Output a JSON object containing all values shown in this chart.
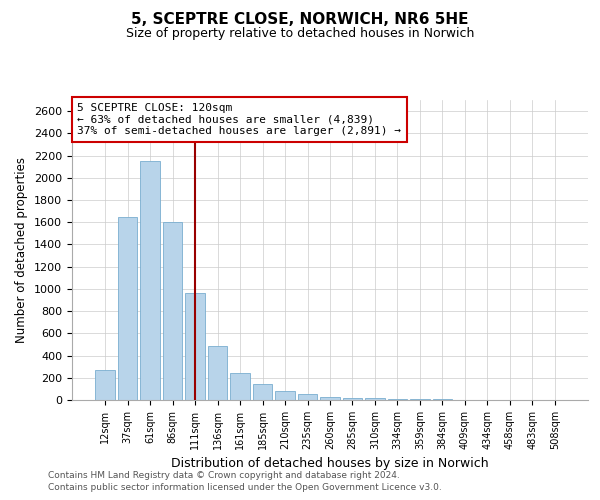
{
  "title": "5, SCEPTRE CLOSE, NORWICH, NR6 5HE",
  "subtitle": "Size of property relative to detached houses in Norwich",
  "xlabel": "Distribution of detached houses by size in Norwich",
  "ylabel": "Number of detached properties",
  "footnote1": "Contains HM Land Registry data © Crown copyright and database right 2024.",
  "footnote2": "Contains public sector information licensed under the Open Government Licence v3.0.",
  "annotation_line1": "5 SCEPTRE CLOSE: 120sqm",
  "annotation_line2": "← 63% of detached houses are smaller (4,839)",
  "annotation_line3": "37% of semi-detached houses are larger (2,891) →",
  "bar_color": "#b8d4ea",
  "bar_edge_color": "#7aaed0",
  "marker_color": "#990000",
  "categories": [
    "12sqm",
    "37sqm",
    "61sqm",
    "86sqm",
    "111sqm",
    "136sqm",
    "161sqm",
    "185sqm",
    "210sqm",
    "235sqm",
    "260sqm",
    "285sqm",
    "310sqm",
    "334sqm",
    "359sqm",
    "384sqm",
    "409sqm",
    "434sqm",
    "458sqm",
    "483sqm",
    "508sqm"
  ],
  "values": [
    270,
    1650,
    2150,
    1600,
    960,
    490,
    240,
    140,
    80,
    50,
    30,
    20,
    15,
    10,
    8,
    5,
    4,
    3,
    3,
    2,
    1
  ],
  "ylim": [
    0,
    2700
  ],
  "yticks": [
    0,
    200,
    400,
    600,
    800,
    1000,
    1200,
    1400,
    1600,
    1800,
    2000,
    2200,
    2400,
    2600
  ],
  "marker_bin_index": 4,
  "annotation_box_edge": "#cc0000",
  "grid_color": "#cccccc"
}
